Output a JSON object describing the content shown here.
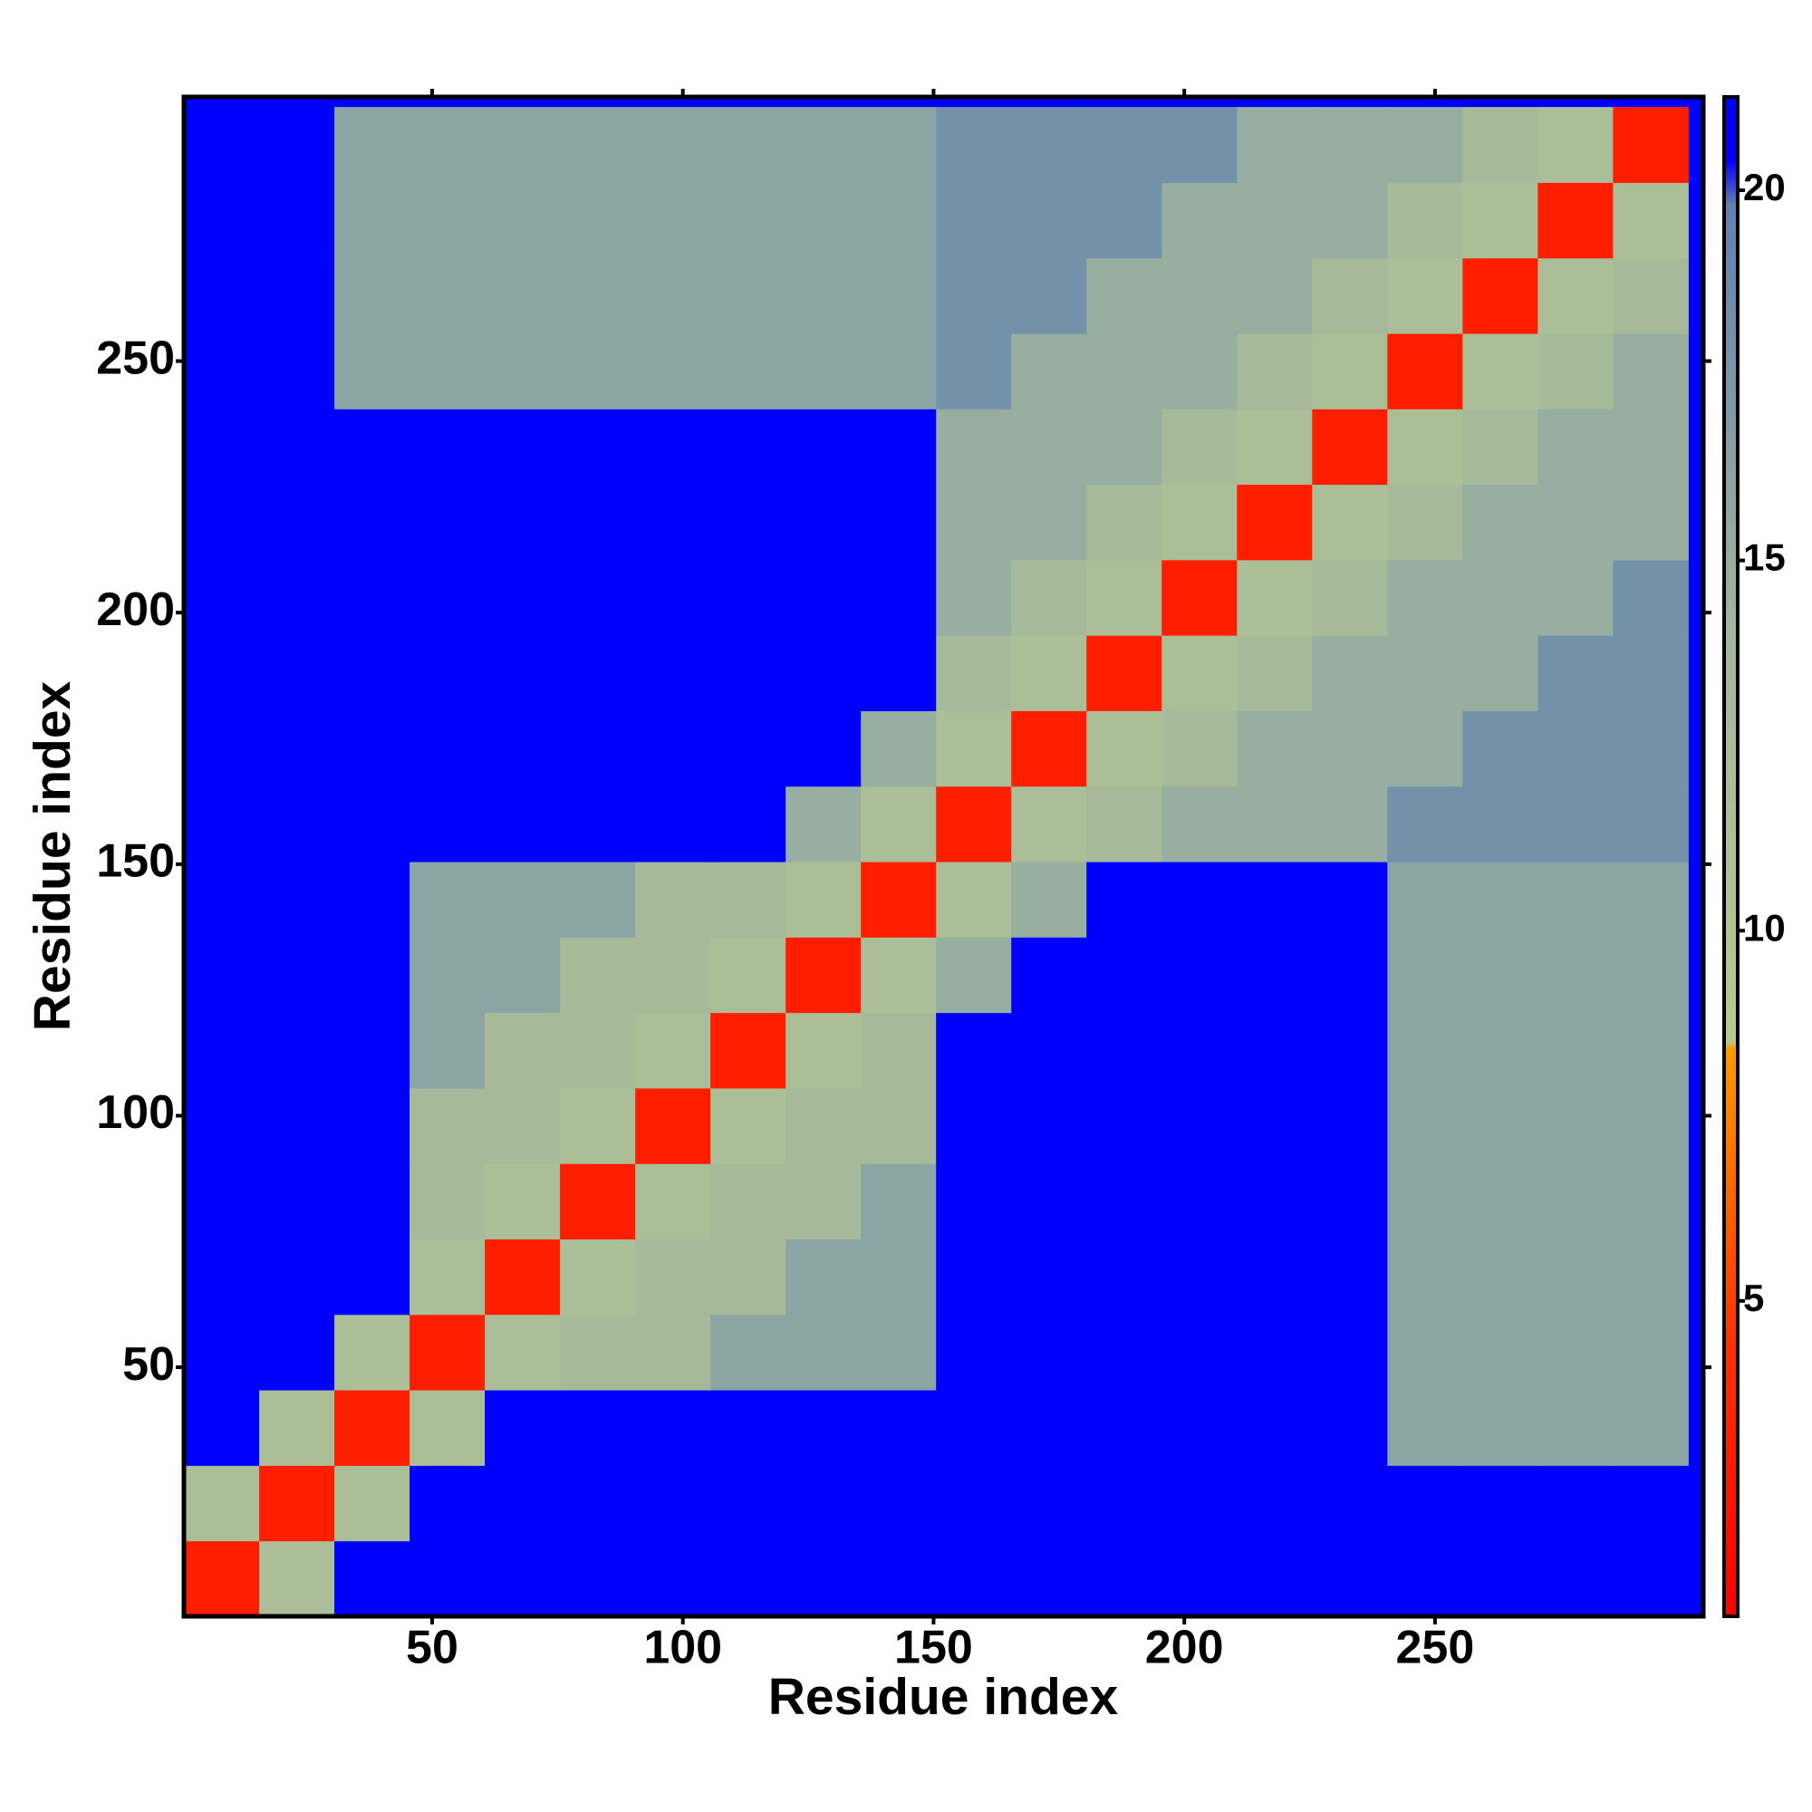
{
  "chart_data": {
    "type": "heatmap",
    "x_label": "Residue index",
    "y_label": "Residue index",
    "x": [
      8,
      23,
      38,
      53,
      68,
      83,
      98,
      113,
      128,
      143,
      158,
      173,
      188,
      203,
      218,
      233,
      248,
      263,
      278,
      293
    ],
    "y": [
      8,
      23,
      38,
      53,
      68,
      83,
      98,
      113,
      128,
      143,
      158,
      173,
      188,
      203,
      218,
      233,
      248,
      263,
      278,
      293
    ],
    "z": [
      [
        3,
        12,
        21,
        21,
        21,
        21,
        21,
        21,
        21,
        21,
        21,
        21,
        21,
        21,
        21,
        21,
        21,
        21,
        21,
        21
      ],
      [
        12,
        3,
        12,
        21,
        21,
        21,
        21,
        21,
        21,
        21,
        21,
        21,
        21,
        21,
        21,
        21,
        21,
        21,
        21,
        21
      ],
      [
        21,
        12,
        3,
        12,
        21,
        21,
        21,
        21,
        21,
        21,
        21,
        21,
        21,
        21,
        21,
        21,
        16,
        16,
        16,
        16
      ],
      [
        21,
        21,
        12,
        3,
        12,
        13,
        13,
        16,
        16,
        16,
        21,
        21,
        21,
        21,
        21,
        21,
        16,
        16,
        16,
        16
      ],
      [
        21,
        21,
        21,
        12,
        3,
        12,
        13,
        13,
        16,
        16,
        21,
        21,
        21,
        21,
        21,
        21,
        16,
        16,
        16,
        16
      ],
      [
        21,
        21,
        21,
        13,
        12,
        3,
        12,
        13,
        13,
        16,
        21,
        21,
        21,
        21,
        21,
        21,
        16,
        16,
        16,
        16
      ],
      [
        21,
        21,
        21,
        13,
        13,
        12,
        3,
        12,
        13,
        13,
        21,
        21,
        21,
        21,
        21,
        21,
        16,
        16,
        16,
        16
      ],
      [
        21,
        21,
        21,
        16,
        13,
        13,
        12,
        3,
        12,
        13,
        21,
        21,
        21,
        21,
        21,
        21,
        16,
        16,
        16,
        16
      ],
      [
        21,
        21,
        21,
        16,
        16,
        13,
        13,
        12,
        3,
        12,
        15,
        21,
        21,
        21,
        21,
        21,
        16,
        16,
        16,
        16
      ],
      [
        21,
        21,
        21,
        16,
        16,
        16,
        13,
        13,
        12,
        3,
        12,
        15,
        21,
        21,
        21,
        21,
        16,
        16,
        16,
        16
      ],
      [
        21,
        21,
        21,
        21,
        21,
        21,
        21,
        21,
        15,
        12,
        3,
        12,
        13,
        15,
        15,
        15,
        18,
        18,
        18,
        18
      ],
      [
        21,
        21,
        21,
        21,
        21,
        21,
        21,
        21,
        21,
        15,
        12,
        3,
        12,
        13,
        15,
        15,
        15,
        18,
        18,
        18
      ],
      [
        21,
        21,
        21,
        21,
        21,
        21,
        21,
        21,
        21,
        21,
        13,
        12,
        3,
        12,
        13,
        15,
        15,
        15,
        18,
        18
      ],
      [
        21,
        21,
        21,
        21,
        21,
        21,
        21,
        21,
        21,
        21,
        15,
        13,
        12,
        3,
        12,
        13,
        15,
        15,
        15,
        18
      ],
      [
        21,
        21,
        21,
        21,
        21,
        21,
        21,
        21,
        21,
        21,
        15,
        15,
        13,
        12,
        3,
        12,
        13,
        15,
        15,
        15
      ],
      [
        21,
        21,
        21,
        21,
        21,
        21,
        21,
        21,
        21,
        21,
        15,
        15,
        15,
        13,
        12,
        3,
        12,
        13,
        15,
        15
      ],
      [
        21,
        21,
        16,
        16,
        16,
        16,
        16,
        16,
        16,
        16,
        18,
        15,
        15,
        15,
        13,
        12,
        3,
        12,
        13,
        15
      ],
      [
        21,
        21,
        16,
        16,
        16,
        16,
        16,
        16,
        16,
        16,
        18,
        18,
        15,
        15,
        15,
        13,
        12,
        3,
        12,
        13
      ],
      [
        21,
        21,
        16,
        16,
        16,
        16,
        16,
        16,
        16,
        16,
        18,
        18,
        18,
        15,
        15,
        15,
        13,
        12,
        3,
        12
      ],
      [
        21,
        21,
        16,
        16,
        16,
        16,
        16,
        16,
        16,
        16,
        18,
        18,
        18,
        18,
        15,
        15,
        15,
        13,
        12,
        3
      ]
    ],
    "xlim": [
      0.5,
      303.5
    ],
    "ylim": [
      0.5,
      302.5
    ],
    "xticks": [
      50,
      100,
      150,
      200,
      250
    ],
    "yticks": [
      50,
      100,
      150,
      200,
      250
    ],
    "zlim": [
      0.74,
      21.26
    ],
    "zticks": [
      5,
      10,
      15,
      20
    ],
    "colorscale": [
      [
        0.74,
        "#ff0000"
      ],
      [
        4.5,
        "#ff3300"
      ],
      [
        8.4,
        "#ff9900"
      ],
      [
        8.5,
        "#b9c98c"
      ],
      [
        14,
        "#a2b79d"
      ],
      [
        19.8,
        "#6080b0"
      ],
      [
        20.4,
        "#0000ff"
      ],
      [
        21.26,
        "#0000ff"
      ]
    ]
  }
}
